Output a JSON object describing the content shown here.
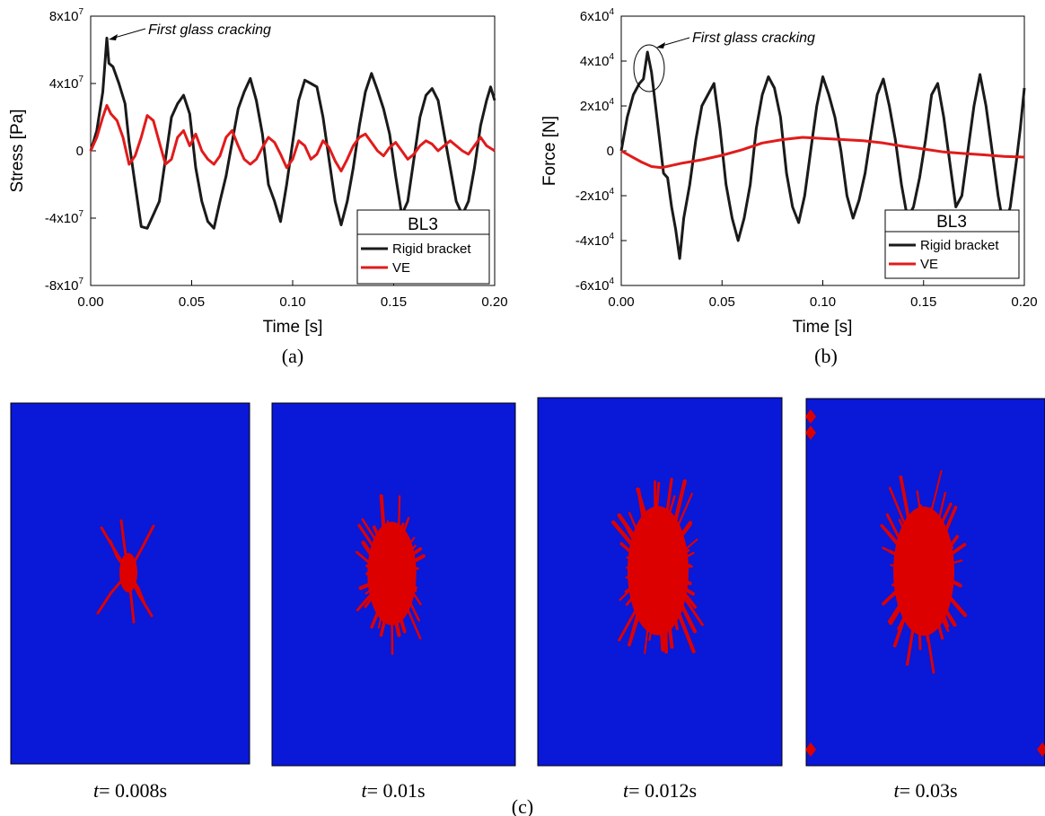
{
  "chart_data": [
    {
      "type": "line",
      "panel_label": "(a)",
      "title": "",
      "xlabel": "Time  [s]",
      "ylabel": "Stress  [Pa]",
      "xlim": [
        0,
        0.2
      ],
      "ylim": [
        -80000000,
        80000000
      ],
      "x_ticks": [
        "0.00",
        "0.05",
        "0.10",
        "0.15",
        "0.20"
      ],
      "y_ticks": [
        {
          "base": "8x10",
          "exp": "7"
        },
        {
          "base": "4x10",
          "exp": "7"
        },
        {
          "base": "0",
          "exp": ""
        },
        {
          "base": "-4x10",
          "exp": "7"
        },
        {
          "base": "-8x10",
          "exp": "7"
        }
      ],
      "annotation": {
        "text": "First glass cracking",
        "x": 0.008,
        "y": 67000000
      },
      "legend": {
        "title": "BL3",
        "placement": "bottom-right"
      },
      "series": [
        {
          "name": "Rigid bracket",
          "color": "#1a1a1a",
          "x": [
            0,
            0.003,
            0.006,
            0.008,
            0.009,
            0.011,
            0.014,
            0.017,
            0.019,
            0.022,
            0.025,
            0.028,
            0.031,
            0.034,
            0.037,
            0.04,
            0.043,
            0.046,
            0.049,
            0.052,
            0.055,
            0.058,
            0.061,
            0.064,
            0.067,
            0.07,
            0.073,
            0.076,
            0.079,
            0.082,
            0.085,
            0.088,
            0.091,
            0.094,
            0.097,
            0.1,
            0.103,
            0.106,
            0.109,
            0.112,
            0.115,
            0.118,
            0.121,
            0.124,
            0.127,
            0.13,
            0.133,
            0.136,
            0.139,
            0.142,
            0.145,
            0.148,
            0.151,
            0.154,
            0.157,
            0.16,
            0.163,
            0.166,
            0.169,
            0.172,
            0.175,
            0.178,
            0.181,
            0.184,
            0.187,
            0.19,
            0.193,
            0.196,
            0.198,
            0.2
          ],
          "values": [
            0,
            12000000,
            35000000,
            67000000,
            52000000,
            50000000,
            40000000,
            28000000,
            5000000,
            -20000000,
            -45000000,
            -46000000,
            -38000000,
            -30000000,
            -5000000,
            20000000,
            28000000,
            33000000,
            22000000,
            -10000000,
            -30000000,
            -42000000,
            -46000000,
            -30000000,
            -15000000,
            5000000,
            25000000,
            35000000,
            43000000,
            30000000,
            10000000,
            -20000000,
            -30000000,
            -42000000,
            -20000000,
            5000000,
            30000000,
            42000000,
            40000000,
            38000000,
            20000000,
            -5000000,
            -30000000,
            -44000000,
            -30000000,
            -10000000,
            15000000,
            35000000,
            46000000,
            36000000,
            25000000,
            10000000,
            -15000000,
            -38000000,
            -30000000,
            -5000000,
            20000000,
            33000000,
            37000000,
            30000000,
            10000000,
            -10000000,
            -30000000,
            -38000000,
            -30000000,
            -10000000,
            15000000,
            30000000,
            38000000,
            30000000
          ]
        },
        {
          "name": "VE",
          "color": "#e11b1b",
          "x": [
            0,
            0.003,
            0.006,
            0.008,
            0.01,
            0.013,
            0.016,
            0.019,
            0.022,
            0.025,
            0.028,
            0.031,
            0.034,
            0.037,
            0.04,
            0.043,
            0.046,
            0.049,
            0.052,
            0.055,
            0.058,
            0.061,
            0.064,
            0.067,
            0.07,
            0.073,
            0.076,
            0.079,
            0.082,
            0.085,
            0.088,
            0.091,
            0.094,
            0.097,
            0.1,
            0.103,
            0.106,
            0.109,
            0.112,
            0.115,
            0.118,
            0.121,
            0.124,
            0.127,
            0.13,
            0.133,
            0.136,
            0.139,
            0.142,
            0.145,
            0.148,
            0.151,
            0.154,
            0.157,
            0.16,
            0.163,
            0.166,
            0.169,
            0.172,
            0.175,
            0.178,
            0.181,
            0.184,
            0.187,
            0.19,
            0.193,
            0.196,
            0.2
          ],
          "values": [
            0,
            8000000,
            20000000,
            27000000,
            22000000,
            18000000,
            8000000,
            -8000000,
            -3000000,
            8000000,
            21000000,
            18000000,
            5000000,
            -8000000,
            -5000000,
            8000000,
            12000000,
            3000000,
            10000000,
            0,
            -5000000,
            -8000000,
            -3000000,
            8000000,
            12000000,
            3000000,
            -5000000,
            -8000000,
            -5000000,
            2000000,
            8000000,
            5000000,
            -2000000,
            -10000000,
            -5000000,
            6000000,
            3000000,
            -5000000,
            -2000000,
            6000000,
            2000000,
            -6000000,
            -12000000,
            -5000000,
            3000000,
            8000000,
            10000000,
            5000000,
            0,
            -3000000,
            2000000,
            5000000,
            0,
            -5000000,
            -2000000,
            3000000,
            6000000,
            4000000,
            0,
            3000000,
            6000000,
            3000000,
            0,
            -2000000,
            3000000,
            8000000,
            3000000,
            0
          ]
        }
      ]
    },
    {
      "type": "line",
      "panel_label": "(b)",
      "title": "",
      "xlabel": "Time  [s]",
      "ylabel": "Force  [N]",
      "xlim": [
        0,
        0.2
      ],
      "ylim": [
        -60000,
        60000
      ],
      "x_ticks": [
        "0.00",
        "0.05",
        "0.10",
        "0.15",
        "0.20"
      ],
      "y_ticks": [
        {
          "base": "6x10",
          "exp": "4"
        },
        {
          "base": "4x10",
          "exp": "4"
        },
        {
          "base": "2x10",
          "exp": "4"
        },
        {
          "base": "0",
          "exp": ""
        },
        {
          "base": "-2x10",
          "exp": "4"
        },
        {
          "base": "-4x10",
          "exp": "4"
        },
        {
          "base": "-6x10",
          "exp": "4"
        }
      ],
      "annotation": {
        "text": "First glass cracking",
        "x": 0.012,
        "y": 40000
      },
      "legend": {
        "title": "BL3",
        "placement": "bottom-right"
      },
      "series": [
        {
          "name": "Rigid bracket",
          "color": "#1a1a1a",
          "x": [
            0,
            0.003,
            0.006,
            0.009,
            0.011,
            0.013,
            0.015,
            0.017,
            0.019,
            0.021,
            0.023,
            0.025,
            0.027,
            0.029,
            0.031,
            0.034,
            0.037,
            0.04,
            0.043,
            0.046,
            0.049,
            0.052,
            0.055,
            0.058,
            0.061,
            0.064,
            0.067,
            0.07,
            0.073,
            0.076,
            0.079,
            0.082,
            0.085,
            0.088,
            0.091,
            0.094,
            0.097,
            0.1,
            0.103,
            0.106,
            0.109,
            0.112,
            0.115,
            0.118,
            0.121,
            0.124,
            0.127,
            0.13,
            0.133,
            0.136,
            0.139,
            0.142,
            0.145,
            0.148,
            0.151,
            0.154,
            0.157,
            0.16,
            0.163,
            0.166,
            0.169,
            0.172,
            0.175,
            0.178,
            0.181,
            0.184,
            0.187,
            0.19,
            0.193,
            0.196,
            0.198,
            0.2
          ],
          "values": [
            0,
            15000,
            25000,
            30000,
            32000,
            44000,
            35000,
            20000,
            5000,
            -10000,
            -12000,
            -25000,
            -35000,
            -48000,
            -30000,
            -15000,
            5000,
            20000,
            25000,
            30000,
            10000,
            -15000,
            -30000,
            -40000,
            -30000,
            -15000,
            10000,
            25000,
            33000,
            28000,
            15000,
            -10000,
            -25000,
            -32000,
            -20000,
            0,
            20000,
            33000,
            25000,
            15000,
            0,
            -20000,
            -30000,
            -22000,
            -10000,
            8000,
            25000,
            32000,
            20000,
            5000,
            -15000,
            -30000,
            -25000,
            -12000,
            5000,
            25000,
            30000,
            15000,
            -5000,
            -25000,
            -20000,
            0,
            20000,
            34000,
            20000,
            0,
            -20000,
            -35000,
            -25000,
            -5000,
            10000,
            28000
          ]
        },
        {
          "name": "VE",
          "color": "#e11b1b",
          "x": [
            0,
            0.005,
            0.01,
            0.015,
            0.02,
            0.025,
            0.03,
            0.04,
            0.05,
            0.06,
            0.07,
            0.08,
            0.09,
            0.1,
            0.11,
            0.12,
            0.13,
            0.14,
            0.15,
            0.16,
            0.17,
            0.18,
            0.19,
            0.2
          ],
          "values": [
            0,
            -2500,
            -5000,
            -7000,
            -7500,
            -6500,
            -5500,
            -4000,
            -2000,
            500,
            3500,
            5000,
            6000,
            5500,
            5000,
            4500,
            3500,
            2000,
            800,
            -500,
            -1200,
            -1800,
            -2500,
            -2800
          ]
        }
      ]
    }
  ],
  "figure_c": {
    "panel_label": "(c)",
    "glass_color": "#0a18d8",
    "crack_color": "#dd0000",
    "snapshots": [
      {
        "label_var": "t",
        "label_value": "= 0.008s",
        "crack_extent": 0.35,
        "edge_damage": false
      },
      {
        "label_var": "t",
        "label_value": "= 0.01s",
        "crack_extent": 0.8,
        "edge_damage": false
      },
      {
        "label_var": "t",
        "label_value": "= 0.012s",
        "crack_extent": 1.0,
        "edge_damage": false
      },
      {
        "label_var": "t",
        "label_value": "= 0.03s",
        "crack_extent": 1.0,
        "edge_damage": true
      }
    ]
  }
}
